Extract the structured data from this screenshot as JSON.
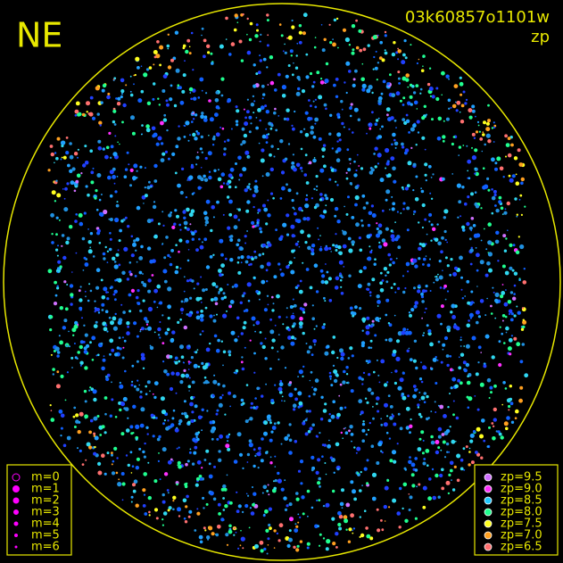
{
  "header": {
    "title": "NE",
    "frame_id": "03k60857o1101w",
    "quantity": "zp"
  },
  "legend_magnitude": {
    "items": [
      "m=0",
      "m=1",
      "m=2",
      "m=3",
      "m=4",
      "m=5",
      "m=6"
    ],
    "color": "#ff00ff"
  },
  "legend_zp": {
    "items": [
      {
        "label": "zp=9.5",
        "color": "#d070ff"
      },
      {
        "label": "zp=9.0",
        "color": "#ff30ff"
      },
      {
        "label": "zp=8.5",
        "color": "#20c8ff"
      },
      {
        "label": "zp=8.0",
        "color": "#20ff90"
      },
      {
        "label": "zp=7.5",
        "color": "#ffff20"
      },
      {
        "label": "zp=7.0",
        "color": "#ffa020"
      },
      {
        "label": "zp=6.5",
        "color": "#ff7070"
      }
    ]
  },
  "frame_color": "#e8e800"
}
